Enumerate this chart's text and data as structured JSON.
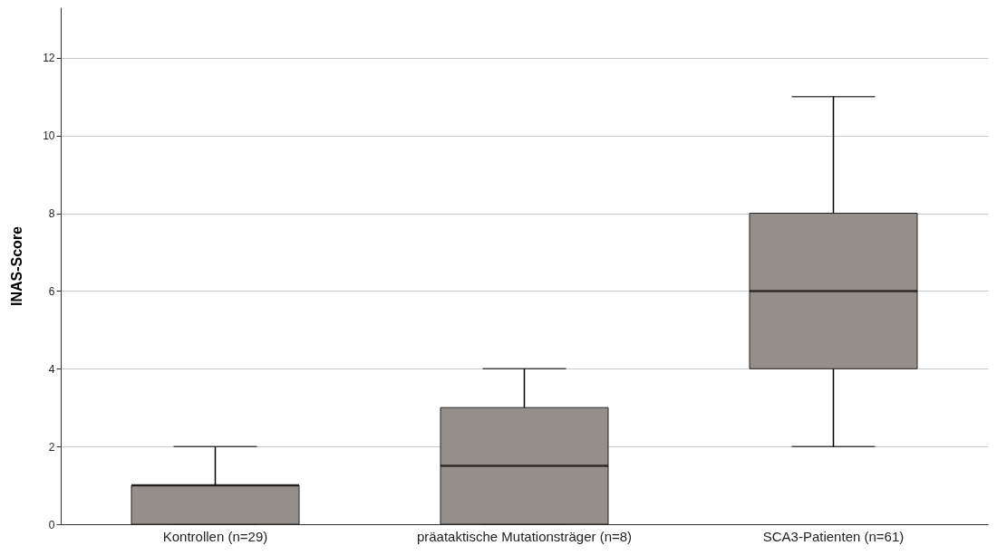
{
  "chart_data": {
    "type": "box",
    "ylabel": "INAS-Score",
    "categories": [
      "Kontrollen (n=29)",
      "präataktische Mutationsträger (n=8)",
      "SCA3-Patienten (n=61)"
    ],
    "boxes": [
      {
        "low": 0,
        "q1": 0,
        "median": 1,
        "q3": 1,
        "high": 2
      },
      {
        "low": 0,
        "q1": 0,
        "median": 1.5,
        "q3": 3,
        "high": 4
      },
      {
        "low": 2,
        "q1": 4,
        "median": 6,
        "q3": 8,
        "high": 11
      }
    ],
    "color": "#958f8c",
    "ylim": [
      0,
      13.3
    ],
    "yticks": [
      0,
      2,
      4,
      6,
      8,
      10,
      12
    ],
    "grid": "y"
  }
}
